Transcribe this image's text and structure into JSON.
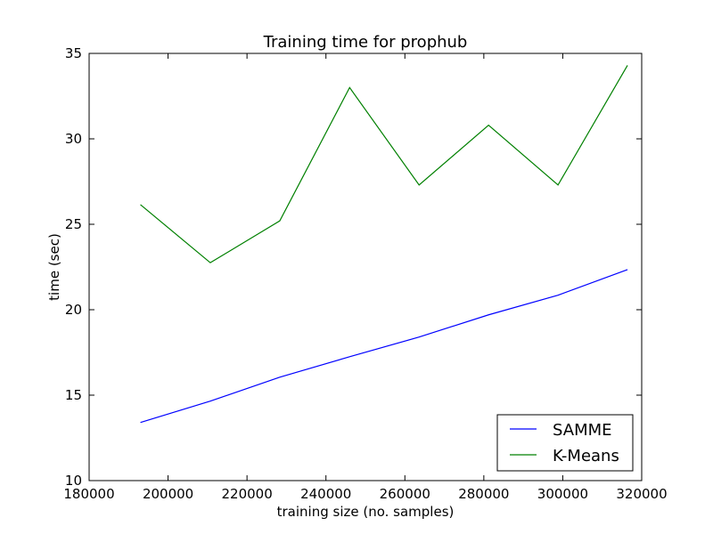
{
  "chart_data": {
    "type": "line",
    "title": "Training time for prophub",
    "xlabel": "training size (no. samples)",
    "ylabel": "time (sec)",
    "xlim": [
      180000,
      320000
    ],
    "ylim": [
      10,
      35
    ],
    "xticks": [
      180000,
      200000,
      220000,
      240000,
      260000,
      280000,
      300000,
      320000
    ],
    "yticks": [
      10,
      15,
      20,
      25,
      30,
      35
    ],
    "grid": false,
    "legend_position": "lower-right",
    "x": [
      193000,
      210700,
      228300,
      246000,
      263600,
      281200,
      298800,
      316400
    ],
    "series": [
      {
        "name": "SAMME",
        "color": "#0000ff",
        "values": [
          13.4,
          14.65,
          16.05,
          17.25,
          18.4,
          19.7,
          20.85,
          22.35
        ]
      },
      {
        "name": "K-Means",
        "color": "#008000",
        "values": [
          26.15,
          22.75,
          25.2,
          33.0,
          27.3,
          30.8,
          27.3,
          34.3
        ]
      }
    ]
  }
}
